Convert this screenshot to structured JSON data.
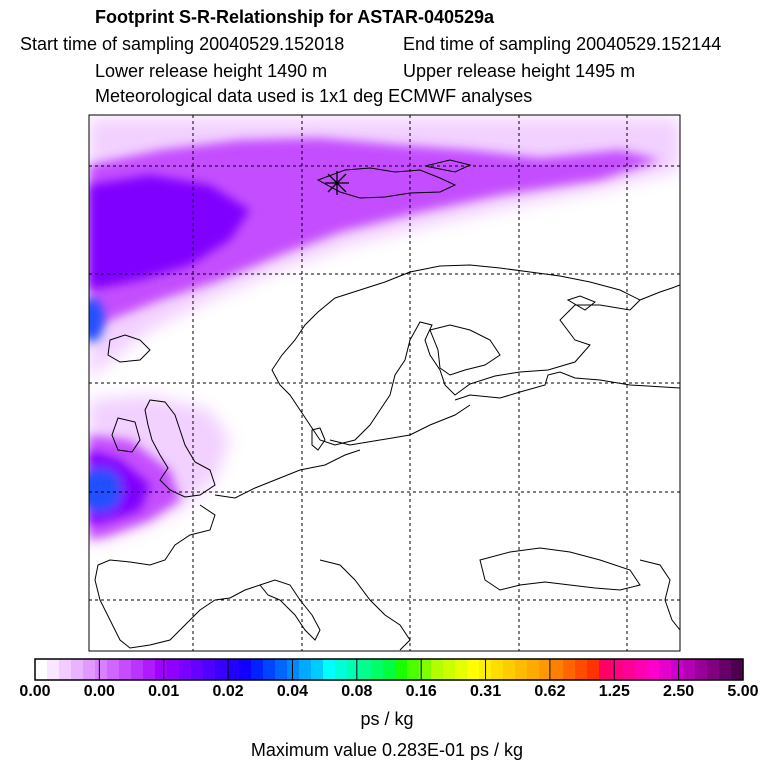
{
  "header": {
    "title": "Footprint S-R-Relationship for ASTAR-040529a",
    "start_time": "Start time of sampling 20040529.152018",
    "end_time": "End time of sampling 20040529.152144",
    "lower_height": "Lower release height 1490 m",
    "upper_height": "Upper release height 1495 m",
    "met_data": "Meteorological data used is 1x1 deg ECMWF analyses"
  },
  "map": {
    "marker_icon": "asterisk-release-site-icon",
    "colors": {
      "frame": "#000000",
      "coastline": "#000000",
      "grid": "#000000",
      "plume_light": "#f0c8ff",
      "plume_mid": "#c040ff",
      "plume_strong": "#8000ff",
      "plume_max": "#2050ff"
    }
  },
  "colorbar": {
    "tick_labels": [
      "0.00",
      "0.00",
      "0.01",
      "0.02",
      "0.04",
      "0.08",
      "0.16",
      "0.31",
      "0.62",
      "1.25",
      "2.50",
      "5.00"
    ],
    "segment_colors": [
      "#ffffff",
      "#fbe6ff",
      "#f3ccff",
      "#eab3ff",
      "#e199ff",
      "#d980ff",
      "#d066ff",
      "#c64cff",
      "#bb33ff",
      "#b01aff",
      "#a200ff",
      "#8f00ff",
      "#7a00ff",
      "#6500ff",
      "#4f00ff",
      "#3a00ff",
      "#2400ff",
      "#0f00ff",
      "#0022ff",
      "#0044ff",
      "#0066ff",
      "#0088ff",
      "#00aaff",
      "#00ccff",
      "#00ffff",
      "#00ffd9",
      "#00ffb3",
      "#00ff8c",
      "#00ff66",
      "#00ff40",
      "#1aff00",
      "#4cff00",
      "#80ff00",
      "#b3ff00",
      "#ccff00",
      "#e6ff00",
      "#ffff00",
      "#ffee00",
      "#ffdd00",
      "#ffcc00",
      "#ffbb00",
      "#ffaa00",
      "#ff9900",
      "#ff8000",
      "#ff6600",
      "#ff4c00",
      "#ff3300",
      "#ff0066",
      "#ff0080",
      "#ff0099",
      "#ff00b3",
      "#ff00cc",
      "#e600cc",
      "#cc00cc",
      "#b300b3",
      "#990099",
      "#800080",
      "#660066",
      "#4d004d"
    ],
    "units": "ps / kg",
    "max_value": "Maximum value  0.283E-01 ps / kg"
  }
}
